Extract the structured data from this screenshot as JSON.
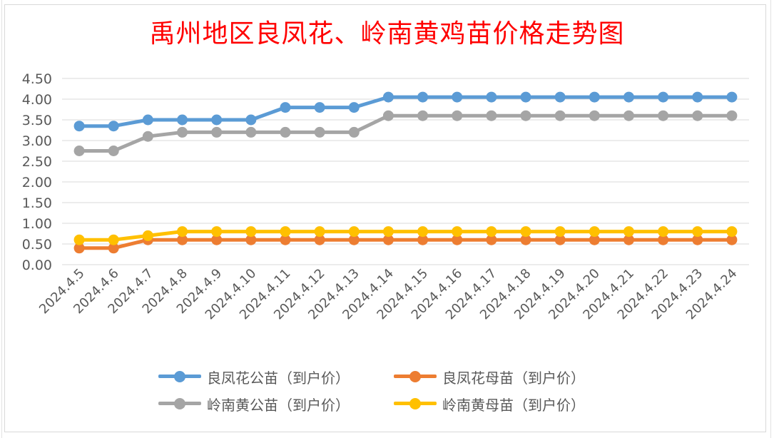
{
  "chart_data": {
    "type": "line",
    "title": "禹州地区良凤花、岭南黄鸡苗价格走势图",
    "xlabel": "",
    "ylabel": "",
    "ylim": [
      0,
      4.5
    ],
    "yticks": [
      "0.00",
      "0.50",
      "1.00",
      "1.50",
      "2.00",
      "2.50",
      "3.00",
      "3.50",
      "4.00",
      "4.50"
    ],
    "grid": true,
    "legend_position": "bottom",
    "categories": [
      "2024.4.5",
      "2024.4.6",
      "2024.4.7",
      "2024.4.8",
      "2024.4.9",
      "2024.4.10",
      "2024.4.11",
      "2024.4.12",
      "2024.4.13",
      "2024.4.14",
      "2024.4.15",
      "2024.4.16",
      "2024.4.17",
      "2024.4.18",
      "2024.4.19",
      "2024.4.20",
      "2024.4.21",
      "2024.4.22",
      "2024.4.23",
      "2024.4.24"
    ],
    "series": [
      {
        "name": "良凤花公苗（到户价）",
        "color": "#5b9bd5",
        "values": [
          3.35,
          3.35,
          3.5,
          3.5,
          3.5,
          3.5,
          3.8,
          3.8,
          3.8,
          4.05,
          4.05,
          4.05,
          4.05,
          4.05,
          4.05,
          4.05,
          4.05,
          4.05,
          4.05,
          4.05
        ]
      },
      {
        "name": "良凤花母苗（到户价）",
        "color": "#ed7d31",
        "values": [
          0.4,
          0.4,
          0.6,
          0.6,
          0.6,
          0.6,
          0.6,
          0.6,
          0.6,
          0.6,
          0.6,
          0.6,
          0.6,
          0.6,
          0.6,
          0.6,
          0.6,
          0.6,
          0.6,
          0.6
        ]
      },
      {
        "name": "岭南黄公苗（到户价）",
        "color": "#a5a5a5",
        "values": [
          2.75,
          2.75,
          3.1,
          3.2,
          3.2,
          3.2,
          3.2,
          3.2,
          3.2,
          3.6,
          3.6,
          3.6,
          3.6,
          3.6,
          3.6,
          3.6,
          3.6,
          3.6,
          3.6,
          3.6
        ]
      },
      {
        "name": "岭南黄母苗（到户价）",
        "color": "#ffc000",
        "values": [
          0.6,
          0.6,
          0.7,
          0.8,
          0.8,
          0.8,
          0.8,
          0.8,
          0.8,
          0.8,
          0.8,
          0.8,
          0.8,
          0.8,
          0.8,
          0.8,
          0.8,
          0.8,
          0.8,
          0.8
        ]
      }
    ]
  }
}
